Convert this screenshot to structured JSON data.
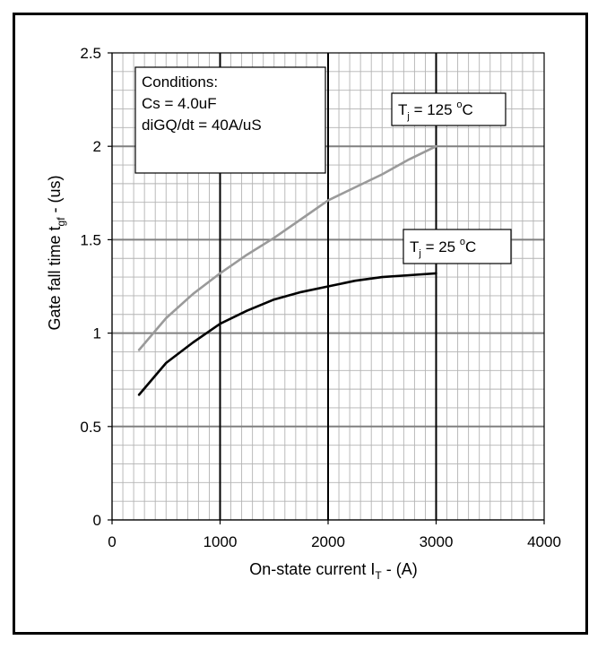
{
  "chart_data": {
    "type": "line",
    "title": "",
    "xlabel": {
      "main": "On-state current I",
      "sub": "T",
      "tail": " -  (A)"
    },
    "ylabel": {
      "main": "Gate fall time t",
      "sub": "gf",
      "tail": " - (us)"
    },
    "xlim": [
      0,
      4000
    ],
    "ylim": [
      0,
      2.5
    ],
    "x_ticks": [
      0,
      1000,
      2000,
      3000,
      4000
    ],
    "x_tick_labels": [
      "0",
      "1000",
      "2000",
      "3000",
      "4000"
    ],
    "y_ticks": [
      0,
      0.5,
      1,
      1.5,
      2,
      2.5
    ],
    "y_tick_labels": [
      "0",
      "0.5",
      "1",
      "1.5",
      "2",
      "2.5"
    ],
    "grid": true,
    "series": [
      {
        "label": {
          "main": "T",
          "sub": "j",
          "value": " = 125 ",
          "deg": "o",
          "unit": "C"
        },
        "color": "#9a9a9a",
        "x": [
          250,
          500,
          750,
          1000,
          1250,
          1500,
          1750,
          2000,
          2250,
          2500,
          2750,
          3000
        ],
        "y": [
          0.91,
          1.08,
          1.21,
          1.32,
          1.42,
          1.51,
          1.61,
          1.71,
          1.78,
          1.85,
          1.93,
          2.0
        ]
      },
      {
        "label": {
          "main": "T",
          "sub": "j",
          "value": " = 25 ",
          "deg": "o",
          "unit": "C"
        },
        "color": "#000000",
        "x": [
          250,
          500,
          750,
          1000,
          1250,
          1500,
          1750,
          2000,
          2250,
          2500,
          2750,
          3000
        ],
        "y": [
          0.67,
          0.84,
          0.95,
          1.05,
          1.12,
          1.18,
          1.22,
          1.25,
          1.28,
          1.3,
          1.31,
          1.32
        ]
      }
    ],
    "annotation": {
      "lines": [
        "Conditions:",
        "Cs = 4.0uF",
        "diGQ/dt = 40A/uS"
      ]
    }
  }
}
